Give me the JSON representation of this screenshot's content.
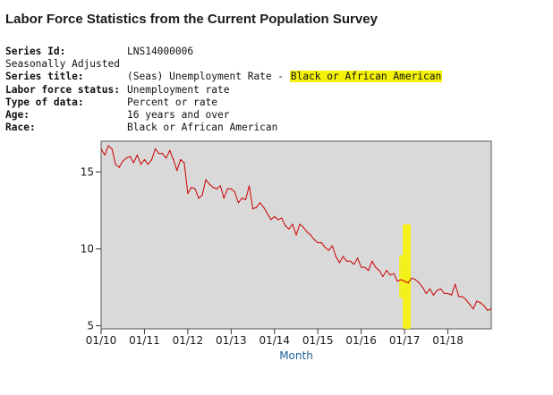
{
  "page": {
    "title": "Labor Force Statistics from the Current Population Survey"
  },
  "series_info": {
    "series_id_label": "Series Id:",
    "series_id": "LNS14000006",
    "seasonal": "Seasonally Adjusted",
    "series_title_label": "Series title:",
    "series_title_prefix": "(Seas) Unemployment Rate - ",
    "series_title_highlight": "Black or African American",
    "labor_force_status_label": "Labor force status:",
    "labor_force_status": "Unemployment rate",
    "type_of_data_label": "Type of data:",
    "type_of_data": "Percent or rate",
    "age_label": "Age:",
    "age": "16 years and over",
    "race_label": "Race:",
    "race": "Black or African American"
  },
  "colors": {
    "line": "#cc0000",
    "plot_background": "#d9d9d9",
    "highlight": "#f5f20a",
    "xlabel": "#1f5f9a"
  },
  "chart_data": {
    "type": "line",
    "title": "",
    "xlabel": "Month",
    "ylabel": "",
    "x_tick_labels": [
      "01/10",
      "01/11",
      "01/12",
      "01/13",
      "01/14",
      "01/15",
      "01/16",
      "01/17",
      "01/18"
    ],
    "y_ticks": [
      5,
      10,
      15
    ],
    "ylim": [
      4.8,
      17.0
    ],
    "grid": false,
    "start_month": "01/10",
    "annotation": {
      "type": "highlight-mark",
      "at": "01/17",
      "color": "#f5f20a"
    },
    "series": [
      {
        "values": [
          16.5,
          16.1,
          16.7,
          16.5,
          15.5,
          15.3,
          15.7,
          15.9,
          16.0,
          15.6,
          16.1,
          15.5,
          15.8,
          15.5,
          15.8,
          16.5,
          16.2,
          16.2,
          15.9,
          16.4,
          15.8,
          15.1,
          15.8,
          15.6,
          13.6,
          14.0,
          13.9,
          13.3,
          13.5,
          14.5,
          14.2,
          14.0,
          13.9,
          14.1,
          13.3,
          13.9,
          13.9,
          13.7,
          13.0,
          13.3,
          13.2,
          14.1,
          12.6,
          12.7,
          13.0,
          12.7,
          12.3,
          11.9,
          12.1,
          11.9,
          12.0,
          11.5,
          11.3,
          11.6,
          10.9,
          11.6,
          11.4,
          11.1,
          10.9,
          10.6,
          10.4,
          10.4,
          10.1,
          9.9,
          10.2,
          9.5,
          9.1,
          9.5,
          9.2,
          9.2,
          9.0,
          9.4,
          8.8,
          8.8,
          8.6,
          9.2,
          8.8,
          8.6,
          8.2,
          8.6,
          8.3,
          8.4,
          7.9,
          8.0,
          7.9,
          7.8,
          8.1,
          8.0,
          7.8,
          7.5,
          7.1,
          7.4,
          7.0,
          7.3,
          7.4,
          7.1,
          7.1,
          7.0,
          7.7,
          6.9,
          6.9,
          6.7,
          6.4,
          6.1,
          6.6,
          6.5,
          6.3,
          6.0,
          6.1
        ]
      }
    ]
  }
}
